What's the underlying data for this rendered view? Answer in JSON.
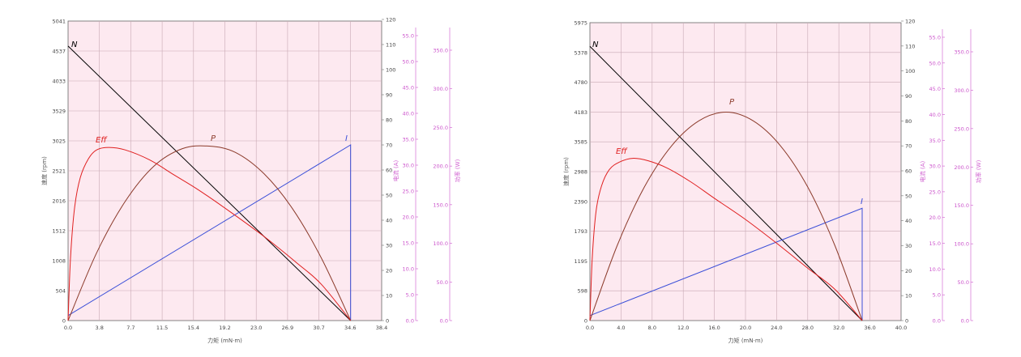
{
  "colors": {
    "plot_bg": "#fde9f0",
    "grid": "#c8a9b4",
    "frame": "#666666",
    "speed": "#000000",
    "power": "#8b3a2a",
    "efficiency": "#e02020",
    "current": "#3b4fd8",
    "secondary_axes": "#cc55cc"
  },
  "chart_data": [
    {
      "type": "line",
      "xlabel": "力矩 (mN·m)",
      "x_ticks": [
        "0.0",
        "3.8",
        "7.7",
        "11.5",
        "15.4",
        "19.2",
        "23.0",
        "26.9",
        "30.7",
        "34.6",
        "38.4"
      ],
      "xlim": [
        0,
        38.4
      ],
      "ylabel_speed": "速度 (rpm)",
      "speed_ticks": [
        "0",
        "504",
        "1008",
        "1512",
        "2016",
        "2521",
        "3025",
        "3529",
        "4033",
        "4537",
        "5041"
      ],
      "speed_lim": [
        0,
        5041
      ],
      "percent_ticks": [
        "0",
        "10",
        "20",
        "30",
        "40",
        "50",
        "60",
        "70",
        "80",
        "90",
        "100",
        "110",
        "120"
      ],
      "current_label": "电流 (A)",
      "current_ticks": [
        "0.0",
        "5.0",
        "10.0",
        "15.0",
        "20.0",
        "25.0",
        "30.0",
        "35.0",
        "40.0",
        "45.0",
        "50.0",
        "55.0"
      ],
      "power_label": "功率 (W)",
      "power_ticks": [
        "0.0",
        "50.0",
        "100.0",
        "150.0",
        "200.0",
        "250.0",
        "300.0",
        "350.0"
      ],
      "series": [
        {
          "name": "N",
          "axis": "speed",
          "x": [
            0,
            34.6
          ],
          "y": [
            4620,
            0
          ]
        },
        {
          "name": "I",
          "axis": "percent",
          "x": [
            0,
            34.6,
            34.6
          ],
          "y": [
            2,
            70,
            0
          ]
        },
        {
          "name": "P",
          "axis": "percent",
          "x": [
            0,
            3.5,
            7,
            10.5,
            14,
            17.3,
            20.5,
            24,
            27.5,
            31,
            34.6
          ],
          "y": [
            0,
            27,
            47.5,
            61.5,
            68.5,
            69.5,
            67,
            58.5,
            44.5,
            25,
            0
          ]
        },
        {
          "name": "Eff",
          "axis": "percent",
          "x": [
            0,
            0.3,
            0.8,
            1.5,
            2.5,
            3.5,
            5,
            7,
            10,
            13,
            16,
            20,
            24,
            28,
            31,
            34.6
          ],
          "y": [
            0,
            25,
            45,
            57,
            64.5,
            68,
            69,
            68,
            64,
            58,
            52,
            43,
            33.5,
            23,
            14.5,
            0
          ]
        }
      ]
    },
    {
      "type": "line",
      "xlabel": "力矩 (mN·m)",
      "x_ticks": [
        "0.0",
        "4.0",
        "8.0",
        "12.0",
        "16.0",
        "20.0",
        "24.0",
        "28.0",
        "32.0",
        "36.0",
        "40.0"
      ],
      "xlim": [
        0,
        40
      ],
      "ylabel_speed": "速度 (rpm)",
      "speed_ticks": [
        "0",
        "598",
        "1195",
        "1793",
        "2390",
        "2988",
        "3585",
        "4183",
        "4780",
        "5378",
        "5975"
      ],
      "speed_lim": [
        0,
        5975
      ],
      "percent_ticks": [
        "0",
        "10",
        "20",
        "30",
        "40",
        "50",
        "60",
        "70",
        "80",
        "90",
        "100",
        "110",
        "120"
      ],
      "current_label": "电流 (A)",
      "current_ticks": [
        "0.0",
        "5.0",
        "10.0",
        "15.0",
        "20.0",
        "25.0",
        "30.0",
        "35.0",
        "40.0",
        "45.0",
        "50.0",
        "55.0"
      ],
      "power_label": "功率 (W)",
      "power_ticks": [
        "0.0",
        "50.0",
        "100.0",
        "150.0",
        "200.0",
        "250.0",
        "300.0",
        "350.0"
      ],
      "series": [
        {
          "name": "N",
          "axis": "speed",
          "x": [
            0,
            35
          ],
          "y": [
            5500,
            0
          ]
        },
        {
          "name": "I",
          "axis": "percent",
          "x": [
            0,
            35,
            35
          ],
          "y": [
            2,
            45,
            0
          ]
        },
        {
          "name": "P",
          "axis": "percent",
          "x": [
            0,
            3.5,
            7,
            10.5,
            14,
            17.5,
            21,
            24.5,
            28,
            31.5,
            35
          ],
          "y": [
            0,
            30,
            53.5,
            70,
            80,
            83.5,
            80,
            70,
            53.5,
            30,
            0
          ]
        },
        {
          "name": "Eff",
          "axis": "percent",
          "x": [
            0,
            0.3,
            0.8,
            1.5,
            2.5,
            3.8,
            5.5,
            7.5,
            10,
            13,
            16,
            20,
            24,
            28,
            31.5,
            35
          ],
          "y": [
            0,
            25,
            44,
            54,
            60.5,
            63.5,
            65,
            64,
            61,
            55.5,
            49,
            40.5,
            31,
            21,
            12.5,
            0
          ]
        }
      ]
    }
  ]
}
